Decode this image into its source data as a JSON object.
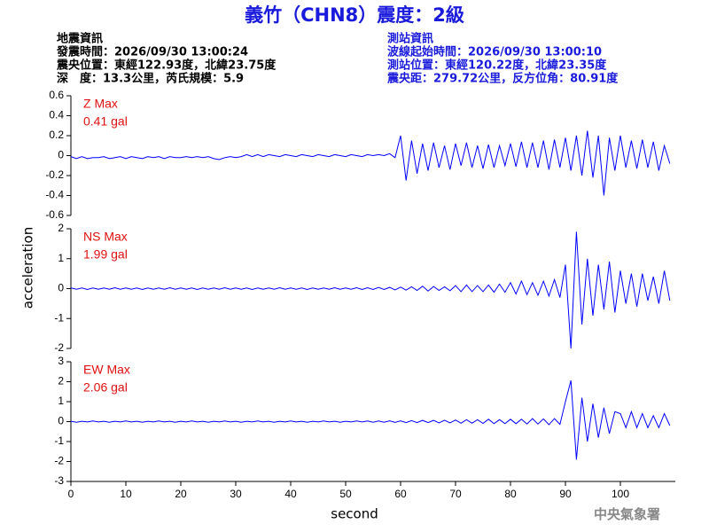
{
  "header": {
    "title": "義竹（CHN8）震度：2級",
    "left_lines": [
      "地震資訊",
      "發震時間：2026/09/30 13:00:24",
      "震央位置：東經122.93度，北緯23.75度",
      "深　度：13.3公里，芮氏規模：5.9"
    ],
    "right_lines": [
      "測站資訊",
      "波線起始時間：2026/09/30 13:00:10",
      "測站位置：東經120.22度，北緯23.35度",
      "震央距：279.72公里，反方位角：80.91度"
    ]
  },
  "xlabel": "second",
  "ylabel": "acceleration",
  "footer": "中央氣象署",
  "chart_data": [
    {
      "type": "line",
      "annotation": "0.41 gal",
      "xlim": [
        0,
        110
      ],
      "ylim": [
        -0.6,
        0.6
      ],
      "yticks": [
        0.6,
        0.4,
        0.2,
        0,
        -0.2,
        -0.4,
        -0.6
      ],
      "x": [
        0,
        1,
        2,
        3,
        4,
        5,
        6,
        7,
        8,
        9,
        10,
        11,
        12,
        13,
        14,
        15,
        16,
        17,
        18,
        19,
        20,
        21,
        22,
        23,
        24,
        25,
        26,
        27,
        28,
        29,
        30,
        31,
        32,
        33,
        34,
        35,
        36,
        37,
        38,
        39,
        40,
        41,
        42,
        43,
        44,
        45,
        46,
        47,
        48,
        49,
        50,
        51,
        52,
        53,
        54,
        55,
        56,
        57,
        58,
        59,
        60,
        61,
        62,
        63,
        64,
        65,
        66,
        67,
        68,
        69,
        70,
        71,
        72,
        73,
        74,
        75,
        76,
        77,
        78,
        79,
        80,
        81,
        82,
        83,
        84,
        85,
        86,
        87,
        88,
        89,
        90,
        91,
        92,
        93,
        94,
        95,
        96,
        97,
        98,
        99,
        100,
        101,
        102,
        103,
        104,
        105,
        106,
        107,
        108,
        109
      ],
      "series": [
        {
          "name": "Z Max",
          "color": "#0000ff",
          "values": [
            -0.01,
            -0.03,
            -0.01,
            -0.03,
            -0.02,
            -0.02,
            -0.01,
            -0.03,
            -0.02,
            -0.01,
            -0.03,
            -0.01,
            -0.02,
            -0.03,
            -0.01,
            -0.02,
            -0.01,
            -0.03,
            -0.01,
            -0.02,
            -0.02,
            -0.01,
            -0.02,
            -0.01,
            -0.02,
            -0.01,
            -0.03,
            -0.04,
            -0.02,
            -0.01,
            -0.02,
            -0.01,
            0.01,
            -0.01,
            0.01,
            -0.01,
            0.01,
            0,
            -0.01,
            0.01,
            0,
            -0.01,
            0.01,
            0,
            -0.01,
            0.01,
            0,
            -0.01,
            0.01,
            0,
            -0.01,
            0.01,
            0,
            -0.01,
            0.01,
            0,
            0.01,
            0,
            0.02,
            -0.02,
            0.2,
            -0.25,
            0.15,
            -0.18,
            0.12,
            -0.15,
            0.13,
            -0.12,
            0.1,
            -0.14,
            0.12,
            -0.1,
            0.13,
            -0.12,
            0.1,
            -0.13,
            0.11,
            -0.12,
            0.1,
            -0.1,
            0.12,
            -0.11,
            0.14,
            -0.12,
            0.13,
            -0.12,
            0.15,
            -0.14,
            0.16,
            -0.12,
            0.18,
            -0.15,
            0.2,
            -0.2,
            0.25,
            -0.22,
            0.2,
            -0.4,
            0.18,
            -0.15,
            0.2,
            -0.12,
            0.15,
            -0.13,
            0.16,
            -0.12,
            0.14,
            -0.15,
            0.1,
            -0.08
          ]
        }
      ]
    },
    {
      "type": "line",
      "annotation": "1.99 gal",
      "xlim": [
        0,
        110
      ],
      "ylim": [
        -2,
        2
      ],
      "yticks": [
        2,
        1,
        0,
        -1,
        -2
      ],
      "x": [
        0,
        1,
        2,
        3,
        4,
        5,
        6,
        7,
        8,
        9,
        10,
        11,
        12,
        13,
        14,
        15,
        16,
        17,
        18,
        19,
        20,
        21,
        22,
        23,
        24,
        25,
        26,
        27,
        28,
        29,
        30,
        31,
        32,
        33,
        34,
        35,
        36,
        37,
        38,
        39,
        40,
        41,
        42,
        43,
        44,
        45,
        46,
        47,
        48,
        49,
        50,
        51,
        52,
        53,
        54,
        55,
        56,
        57,
        58,
        59,
        60,
        61,
        62,
        63,
        64,
        65,
        66,
        67,
        68,
        69,
        70,
        71,
        72,
        73,
        74,
        75,
        76,
        77,
        78,
        79,
        80,
        81,
        82,
        83,
        84,
        85,
        86,
        87,
        88,
        89,
        90,
        91,
        92,
        93,
        94,
        95,
        96,
        97,
        98,
        99,
        100,
        101,
        102,
        103,
        104,
        105,
        106,
        107,
        108,
        109
      ],
      "series": [
        {
          "name": "NS Max",
          "color": "#0000ff",
          "values": [
            0.02,
            -0.02,
            0.02,
            -0.03,
            0.02,
            -0.02,
            0.02,
            -0.02,
            0.03,
            -0.02,
            0.02,
            -0.02,
            0.02,
            -0.03,
            0.02,
            -0.02,
            0.02,
            -0.02,
            0.03,
            -0.02,
            0.02,
            -0.02,
            0.02,
            -0.03,
            0.02,
            -0.02,
            0.02,
            -0.02,
            0.03,
            -0.02,
            0.02,
            -0.02,
            0.02,
            -0.03,
            0.02,
            -0.02,
            0.02,
            -0.02,
            0.03,
            -0.02,
            0.02,
            -0.02,
            0.02,
            -0.03,
            0.02,
            -0.02,
            0.02,
            -0.02,
            0.03,
            -0.02,
            0.02,
            -0.02,
            0.03,
            -0.03,
            0.03,
            -0.03,
            0.04,
            -0.03,
            0.04,
            -0.04,
            0.05,
            -0.05,
            0.06,
            -0.06,
            0.08,
            -0.08,
            0.07,
            -0.06,
            0.06,
            -0.07,
            0.1,
            -0.1,
            0.12,
            -0.1,
            0.1,
            -0.1,
            0.12,
            -0.12,
            0.15,
            -0.12,
            0.2,
            -0.18,
            0.25,
            -0.2,
            0.2,
            -0.22,
            0.25,
            -0.25,
            0.3,
            -0.3,
            0.8,
            -2.0,
            1.9,
            -1.2,
            1.0,
            -0.9,
            0.8,
            -0.7,
            0.9,
            -0.8,
            0.6,
            -0.5,
            0.5,
            -0.6,
            0.5,
            -0.4,
            0.4,
            -0.5,
            0.6,
            -0.4
          ]
        }
      ]
    },
    {
      "type": "line",
      "annotation": "2.06 gal",
      "xlim": [
        0,
        110
      ],
      "ylim": [
        -3,
        3
      ],
      "yticks": [
        3,
        2,
        1,
        0,
        -1,
        -2,
        -3
      ],
      "xticks": [
        0,
        10,
        20,
        30,
        40,
        50,
        60,
        70,
        80,
        90,
        100
      ],
      "x": [
        0,
        1,
        2,
        3,
        4,
        5,
        6,
        7,
        8,
        9,
        10,
        11,
        12,
        13,
        14,
        15,
        16,
        17,
        18,
        19,
        20,
        21,
        22,
        23,
        24,
        25,
        26,
        27,
        28,
        29,
        30,
        31,
        32,
        33,
        34,
        35,
        36,
        37,
        38,
        39,
        40,
        41,
        42,
        43,
        44,
        45,
        46,
        47,
        48,
        49,
        50,
        51,
        52,
        53,
        54,
        55,
        56,
        57,
        58,
        59,
        60,
        61,
        62,
        63,
        64,
        65,
        66,
        67,
        68,
        69,
        70,
        71,
        72,
        73,
        74,
        75,
        76,
        77,
        78,
        79,
        80,
        81,
        82,
        83,
        84,
        85,
        86,
        87,
        88,
        89,
        90,
        91,
        92,
        93,
        94,
        95,
        96,
        97,
        98,
        99,
        100,
        101,
        102,
        103,
        104,
        105,
        106,
        107,
        108,
        109
      ],
      "series": [
        {
          "name": "EW Max",
          "color": "#0000ff",
          "values": [
            0.02,
            -0.03,
            0.02,
            -0.02,
            0.03,
            -0.02,
            0.02,
            -0.03,
            0.02,
            -0.02,
            0.03,
            -0.02,
            0.02,
            -0.03,
            0.02,
            -0.02,
            0.03,
            -0.02,
            0.02,
            -0.03,
            0.02,
            -0.02,
            0.03,
            -0.02,
            0.02,
            -0.03,
            0.02,
            -0.02,
            0.03,
            -0.02,
            0.02,
            -0.03,
            0.02,
            -0.02,
            0.03,
            -0.02,
            0.02,
            -0.03,
            0.02,
            -0.02,
            0.03,
            -0.02,
            0.02,
            -0.03,
            0.02,
            -0.02,
            0.03,
            -0.02,
            0.02,
            -0.03,
            0.02,
            -0.02,
            0.03,
            -0.02,
            0.03,
            -0.03,
            0.03,
            -0.03,
            0.04,
            -0.04,
            0.04,
            -0.05,
            0.05,
            -0.05,
            0.06,
            -0.05,
            0.06,
            -0.06,
            0.07,
            -0.06,
            0.08,
            -0.08,
            0.1,
            -0.08,
            0.1,
            -0.09,
            0.12,
            -0.1,
            0.1,
            -0.1,
            0.12,
            -0.1,
            0.12,
            -0.12,
            0.15,
            -0.12,
            0.14,
            -0.15,
            0.15,
            -0.14,
            1.0,
            2.06,
            -1.9,
            1.2,
            -1.0,
            0.9,
            -0.8,
            0.7,
            -0.6,
            0.5,
            0.4,
            -0.3,
            0.5,
            -0.3,
            0.4,
            -0.3,
            0.3,
            -0.3,
            0.4,
            -0.2
          ]
        }
      ]
    }
  ]
}
